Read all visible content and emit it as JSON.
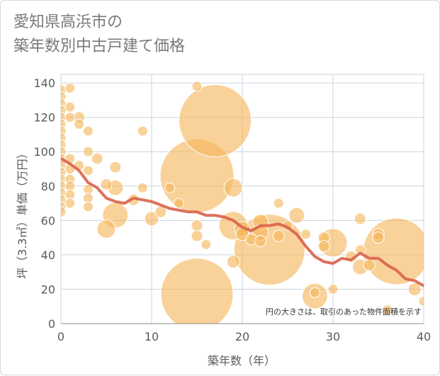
{
  "title": {
    "line1": "愛知県高浜市の",
    "line2": "築年数別中古戸建て価格"
  },
  "chart_data": {
    "type": "scatter",
    "xlabel": "築年数（年）",
    "ylabel": "坪（3.3㎡）単価（万円）",
    "xlim": [
      0,
      40
    ],
    "ylim": [
      0,
      145
    ],
    "xticks": [
      0,
      10,
      20,
      30,
      40
    ],
    "yticks": [
      0,
      20,
      40,
      60,
      80,
      100,
      120,
      140
    ],
    "grid": true,
    "note": "円の大きさは、取引のあった物件面積を示す",
    "colors": {
      "bubble": "#f5b75c",
      "bubble_stroke": "#ffffff",
      "trend": "#d9604a",
      "grid": "#ccd3de",
      "axis": "#5a5a5a"
    },
    "bubbles": [
      {
        "x": 0,
        "y": 136,
        "s": 7
      },
      {
        "x": 0,
        "y": 132,
        "s": 7
      },
      {
        "x": 0,
        "y": 128,
        "s": 7
      },
      {
        "x": 0,
        "y": 124,
        "s": 7
      },
      {
        "x": 0,
        "y": 120,
        "s": 7
      },
      {
        "x": 0,
        "y": 116,
        "s": 7
      },
      {
        "x": 0,
        "y": 112,
        "s": 7
      },
      {
        "x": 0,
        "y": 108,
        "s": 7
      },
      {
        "x": 0,
        "y": 104,
        "s": 7
      },
      {
        "x": 0,
        "y": 100,
        "s": 7
      },
      {
        "x": 0,
        "y": 96,
        "s": 7
      },
      {
        "x": 0,
        "y": 92,
        "s": 7
      },
      {
        "x": 0,
        "y": 88,
        "s": 7
      },
      {
        "x": 0,
        "y": 84,
        "s": 7
      },
      {
        "x": 0,
        "y": 80,
        "s": 7
      },
      {
        "x": 0,
        "y": 76,
        "s": 7
      },
      {
        "x": 0,
        "y": 72,
        "s": 7
      },
      {
        "x": 0,
        "y": 68,
        "s": 7
      },
      {
        "x": 0,
        "y": 65,
        "s": 7
      },
      {
        "x": 1,
        "y": 137,
        "s": 7
      },
      {
        "x": 1,
        "y": 126,
        "s": 7
      },
      {
        "x": 1,
        "y": 120,
        "s": 7
      },
      {
        "x": 1,
        "y": 96,
        "s": 7
      },
      {
        "x": 1,
        "y": 90,
        "s": 7
      },
      {
        "x": 1,
        "y": 84,
        "s": 7
      },
      {
        "x": 1,
        "y": 80,
        "s": 7
      },
      {
        "x": 1,
        "y": 75,
        "s": 7
      },
      {
        "x": 1,
        "y": 70,
        "s": 7
      },
      {
        "x": 2,
        "y": 120,
        "s": 8
      },
      {
        "x": 2,
        "y": 116,
        "s": 7
      },
      {
        "x": 2,
        "y": 92,
        "s": 7
      },
      {
        "x": 3,
        "y": 112,
        "s": 7
      },
      {
        "x": 3,
        "y": 100,
        "s": 7
      },
      {
        "x": 3,
        "y": 89,
        "s": 7
      },
      {
        "x": 3,
        "y": 78,
        "s": 7
      },
      {
        "x": 3,
        "y": 73,
        "s": 7
      },
      {
        "x": 3,
        "y": 68,
        "s": 7
      },
      {
        "x": 4,
        "y": 96,
        "s": 8
      },
      {
        "x": 5,
        "y": 81,
        "s": 8
      },
      {
        "x": 5,
        "y": 55,
        "s": 13
      },
      {
        "x": 6,
        "y": 91,
        "s": 8
      },
      {
        "x": 6,
        "y": 79,
        "s": 11
      },
      {
        "x": 6,
        "y": 63,
        "s": 18
      },
      {
        "x": 8,
        "y": 72,
        "s": 8
      },
      {
        "x": 9,
        "y": 112,
        "s": 7
      },
      {
        "x": 9,
        "y": 79,
        "s": 7
      },
      {
        "x": 10,
        "y": 61,
        "s": 10
      },
      {
        "x": 11,
        "y": 65,
        "s": 8
      },
      {
        "x": 12,
        "y": 79,
        "s": 7
      },
      {
        "x": 13,
        "y": 70,
        "s": 7
      },
      {
        "x": 15,
        "y": 138,
        "s": 7
      },
      {
        "x": 15,
        "y": 86,
        "s": 52
      },
      {
        "x": 15,
        "y": 57,
        "s": 8
      },
      {
        "x": 15,
        "y": 51,
        "s": 8
      },
      {
        "x": 15,
        "y": 17,
        "s": 51
      },
      {
        "x": 16,
        "y": 46,
        "s": 7
      },
      {
        "x": 17,
        "y": 118,
        "s": 51
      },
      {
        "x": 19,
        "y": 79,
        "s": 13
      },
      {
        "x": 19,
        "y": 57,
        "s": 20
      },
      {
        "x": 19,
        "y": 36,
        "s": 9
      },
      {
        "x": 20,
        "y": 55,
        "s": 11
      },
      {
        "x": 20,
        "y": 52,
        "s": 9
      },
      {
        "x": 21,
        "y": 49,
        "s": 8
      },
      {
        "x": 22,
        "y": 59,
        "s": 11
      },
      {
        "x": 22,
        "y": 53,
        "s": 11
      },
      {
        "x": 22,
        "y": 48,
        "s": 8
      },
      {
        "x": 23,
        "y": 43,
        "s": 50
      },
      {
        "x": 24,
        "y": 70,
        "s": 7
      },
      {
        "x": 24,
        "y": 51,
        "s": 8
      },
      {
        "x": 25,
        "y": 57,
        "s": 7
      },
      {
        "x": 26,
        "y": 63,
        "s": 11
      },
      {
        "x": 27,
        "y": 52,
        "s": 7
      },
      {
        "x": 28,
        "y": 16,
        "s": 18
      },
      {
        "x": 28,
        "y": 18,
        "s": 7
      },
      {
        "x": 29,
        "y": 50,
        "s": 8
      },
      {
        "x": 29,
        "y": 45,
        "s": 8
      },
      {
        "x": 30,
        "y": 47,
        "s": 20
      },
      {
        "x": 30,
        "y": 20,
        "s": 7
      },
      {
        "x": 32,
        "y": 39,
        "s": 8
      },
      {
        "x": 33,
        "y": 61,
        "s": 8
      },
      {
        "x": 33,
        "y": 43,
        "s": 7
      },
      {
        "x": 33,
        "y": 33,
        "s": 11
      },
      {
        "x": 34,
        "y": 34,
        "s": 8
      },
      {
        "x": 35,
        "y": 52,
        "s": 8
      },
      {
        "x": 35,
        "y": 50,
        "s": 8
      },
      {
        "x": 36,
        "y": 8,
        "s": 7
      },
      {
        "x": 37,
        "y": 42,
        "s": 47
      },
      {
        "x": 39,
        "y": 20,
        "s": 9
      },
      {
        "x": 40,
        "y": 13,
        "s": 7
      }
    ],
    "trend": {
      "x": [
        0,
        1,
        2,
        3,
        4,
        5,
        6,
        7,
        8,
        9,
        10,
        11,
        12,
        13,
        14,
        15,
        16,
        17,
        18,
        19,
        20,
        21,
        22,
        23,
        24,
        25,
        26,
        27,
        28,
        29,
        30,
        31,
        32,
        33,
        34,
        35,
        36,
        37,
        38,
        39,
        40
      ],
      "y": [
        96,
        93,
        89,
        82,
        79,
        73,
        71,
        70,
        73,
        72,
        71,
        69,
        67,
        66,
        65,
        65,
        63,
        63,
        62,
        60,
        56,
        54,
        57,
        57,
        58,
        56,
        52,
        45,
        39,
        36,
        35,
        38,
        37,
        41,
        38,
        38,
        34,
        31,
        26,
        25,
        22
      ]
    }
  }
}
